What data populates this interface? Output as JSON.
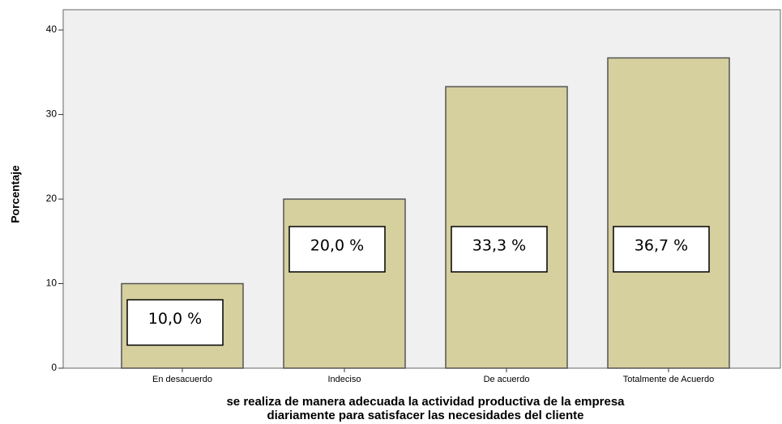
{
  "chart_data": {
    "type": "bar",
    "categories": [
      "En desacuerdo",
      "Indeciso",
      "De acuerdo",
      "Totalmente de Acuerdo"
    ],
    "values": [
      10,
      20,
      33.3,
      36.7
    ],
    "value_labels": [
      "10,0 %",
      "20,0 %",
      "33,3 %",
      "36,7 %"
    ],
    "color": "#d6cf9e",
    "ylim": [
      0,
      42.4
    ],
    "yticks": [
      0,
      10,
      20,
      30,
      40
    ],
    "xlabel": [
      "se realiza de manera adecuada la actividad productiva de la empresa",
      "diariamente para satisfacer las necesidades del cliente"
    ],
    "ylabel": "Porcentaje"
  }
}
